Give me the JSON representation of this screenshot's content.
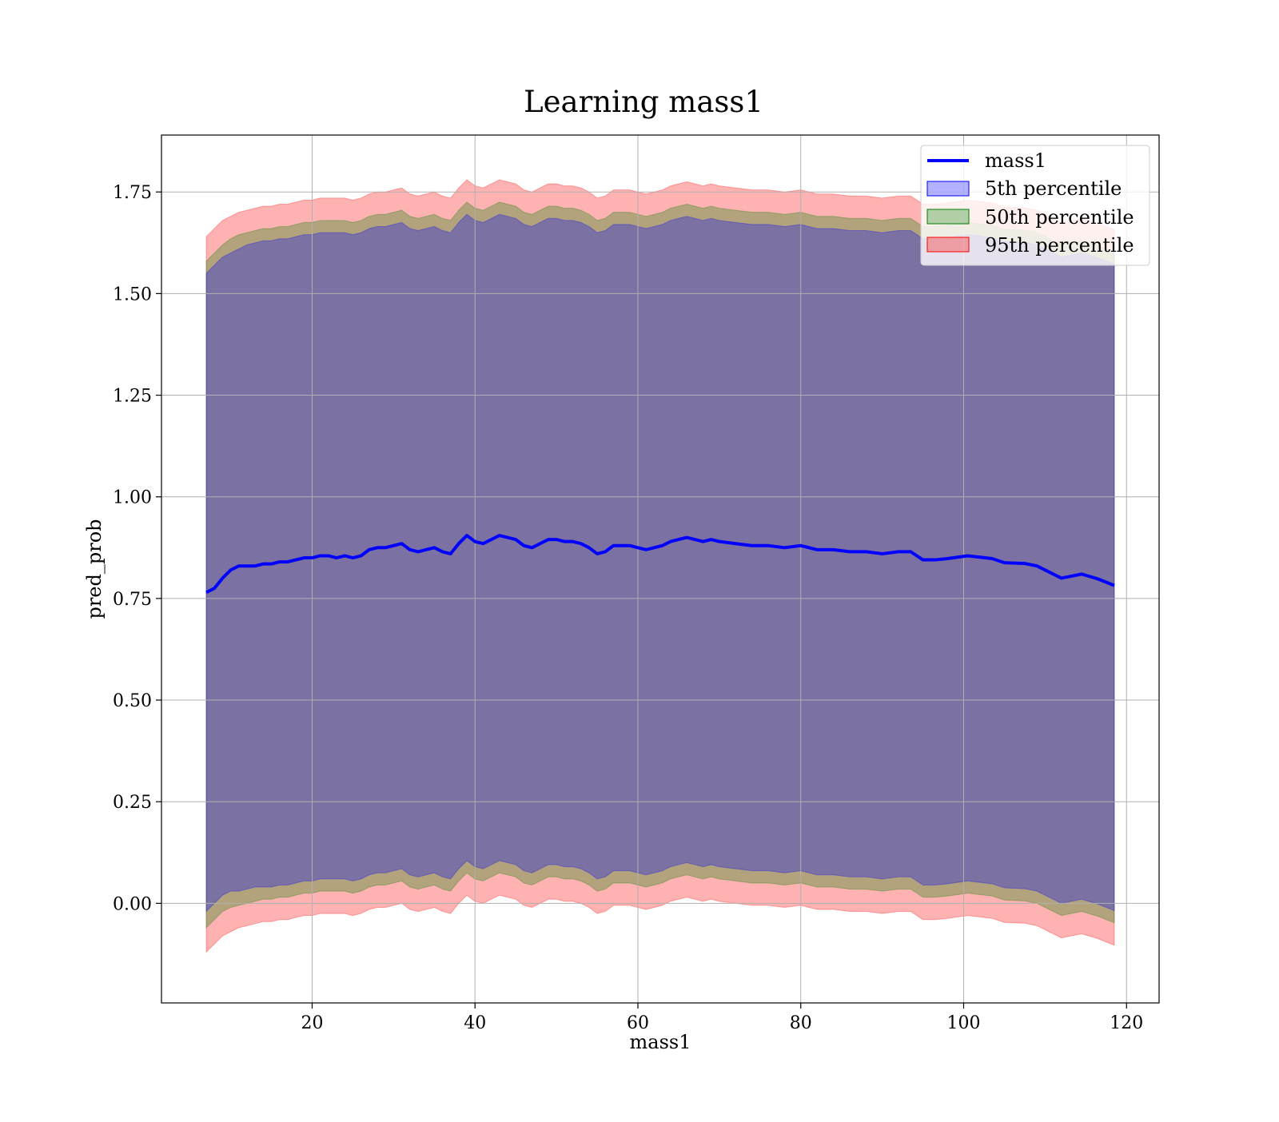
{
  "chart_data": {
    "type": "area",
    "title": "Learning mass1",
    "xlabel": "mass1",
    "ylabel": "pred_prob",
    "xlim": [
      1.5,
      124
    ],
    "ylim": [
      -0.245,
      1.89
    ],
    "xticks": [
      20,
      40,
      60,
      80,
      100,
      120
    ],
    "xtick_labels": [
      "20",
      "40",
      "60",
      "80",
      "100",
      "120"
    ],
    "yticks": [
      0.0,
      0.25,
      0.5,
      0.75,
      1.0,
      1.25,
      1.5,
      1.75
    ],
    "ytick_labels": [
      "0.00",
      "0.25",
      "0.50",
      "0.75",
      "1.00",
      "1.25",
      "1.50",
      "1.75"
    ],
    "grid": true,
    "legend_position": "top-right",
    "legend": [
      {
        "label": "mass1",
        "kind": "line",
        "color": "#0000ff"
      },
      {
        "label": "5th percentile",
        "kind": "patch",
        "color": "#0000ff"
      },
      {
        "label": "50th percentile",
        "kind": "patch",
        "color": "#008000"
      },
      {
        "label": "95th percentile",
        "kind": "patch",
        "color": "#ff0000"
      }
    ],
    "x": [
      7,
      8,
      9,
      10,
      11,
      12,
      13,
      14,
      15,
      16,
      17,
      18,
      19,
      20,
      21,
      22,
      23,
      24,
      25,
      26,
      27,
      28,
      29,
      30,
      31,
      32,
      33,
      34,
      35,
      36,
      37,
      38,
      39,
      40,
      41,
      42,
      43,
      44,
      45,
      46,
      47,
      48,
      49,
      50,
      51,
      52,
      53,
      54,
      55,
      56,
      57,
      58,
      59,
      60,
      61,
      62,
      63,
      64,
      65,
      66,
      67,
      68,
      69,
      70,
      72,
      74,
      76,
      78,
      80,
      82,
      84,
      86,
      88,
      90,
      92,
      93.5,
      95,
      96.5,
      98,
      100.5,
      103.5,
      105,
      107.5,
      109,
      112,
      114.5,
      116.5,
      118.5
    ],
    "series": [
      {
        "name": "mass1",
        "color": "#0000ff",
        "values": [
          0.765,
          0.775,
          0.8,
          0.82,
          0.83,
          0.83,
          0.83,
          0.835,
          0.835,
          0.84,
          0.84,
          0.845,
          0.85,
          0.85,
          0.855,
          0.855,
          0.85,
          0.855,
          0.85,
          0.855,
          0.87,
          0.875,
          0.875,
          0.88,
          0.885,
          0.87,
          0.865,
          0.87,
          0.875,
          0.865,
          0.86,
          0.885,
          0.905,
          0.89,
          0.885,
          0.895,
          0.905,
          0.9,
          0.895,
          0.88,
          0.875,
          0.885,
          0.895,
          0.895,
          0.89,
          0.89,
          0.885,
          0.875,
          0.86,
          0.865,
          0.88,
          0.88,
          0.88,
          0.875,
          0.87,
          0.875,
          0.88,
          0.89,
          0.895,
          0.9,
          0.895,
          0.89,
          0.895,
          0.89,
          0.885,
          0.88,
          0.88,
          0.875,
          0.88,
          0.87,
          0.87,
          0.865,
          0.865,
          0.86,
          0.865,
          0.865,
          0.845,
          0.845,
          0.848,
          0.855,
          0.848,
          0.838,
          0.836,
          0.83,
          0.8,
          0.81,
          0.798,
          0.782
        ]
      },
      {
        "name": "5th percentile",
        "color": "#0000ff",
        "lower": [
          -0.02,
          0.0,
          0.02,
          0.03,
          0.03,
          0.035,
          0.04,
          0.04,
          0.04,
          0.045,
          0.045,
          0.05,
          0.055,
          0.055,
          0.06,
          0.06,
          0.06,
          0.06,
          0.055,
          0.06,
          0.07,
          0.075,
          0.075,
          0.08,
          0.085,
          0.07,
          0.065,
          0.07,
          0.075,
          0.065,
          0.06,
          0.085,
          0.105,
          0.09,
          0.085,
          0.095,
          0.105,
          0.1,
          0.095,
          0.08,
          0.075,
          0.085,
          0.095,
          0.095,
          0.09,
          0.09,
          0.085,
          0.075,
          0.06,
          0.065,
          0.08,
          0.08,
          0.08,
          0.075,
          0.07,
          0.075,
          0.08,
          0.09,
          0.095,
          0.1,
          0.095,
          0.09,
          0.095,
          0.09,
          0.085,
          0.08,
          0.08,
          0.075,
          0.08,
          0.07,
          0.07,
          0.065,
          0.065,
          0.06,
          0.065,
          0.065,
          0.045,
          0.045,
          0.048,
          0.055,
          0.048,
          0.038,
          0.036,
          0.03,
          0.0,
          0.01,
          -0.002,
          -0.018
        ],
        "upper": [
          1.55,
          1.57,
          1.59,
          1.6,
          1.61,
          1.62,
          1.625,
          1.63,
          1.63,
          1.635,
          1.635,
          1.64,
          1.645,
          1.645,
          1.65,
          1.65,
          1.65,
          1.65,
          1.645,
          1.65,
          1.66,
          1.665,
          1.665,
          1.67,
          1.675,
          1.66,
          1.655,
          1.66,
          1.665,
          1.655,
          1.65,
          1.675,
          1.695,
          1.68,
          1.675,
          1.685,
          1.695,
          1.69,
          1.685,
          1.67,
          1.665,
          1.675,
          1.685,
          1.685,
          1.68,
          1.68,
          1.675,
          1.665,
          1.65,
          1.655,
          1.67,
          1.67,
          1.67,
          1.665,
          1.66,
          1.665,
          1.67,
          1.68,
          1.685,
          1.69,
          1.685,
          1.68,
          1.685,
          1.68,
          1.675,
          1.67,
          1.67,
          1.665,
          1.67,
          1.66,
          1.66,
          1.655,
          1.655,
          1.65,
          1.655,
          1.655,
          1.635,
          1.635,
          1.638,
          1.645,
          1.638,
          1.628,
          1.626,
          1.62,
          1.59,
          1.6,
          1.588,
          1.572
        ]
      },
      {
        "name": "50th percentile",
        "color": "#008000",
        "lower": [
          -0.06,
          -0.04,
          -0.02,
          -0.01,
          -0.005,
          0.0,
          0.005,
          0.01,
          0.01,
          0.015,
          0.015,
          0.02,
          0.025,
          0.025,
          0.03,
          0.03,
          0.03,
          0.03,
          0.025,
          0.03,
          0.04,
          0.045,
          0.045,
          0.05,
          0.055,
          0.04,
          0.035,
          0.04,
          0.045,
          0.035,
          0.03,
          0.055,
          0.075,
          0.06,
          0.055,
          0.065,
          0.075,
          0.07,
          0.065,
          0.05,
          0.045,
          0.055,
          0.065,
          0.065,
          0.06,
          0.06,
          0.055,
          0.045,
          0.03,
          0.035,
          0.05,
          0.05,
          0.05,
          0.045,
          0.04,
          0.045,
          0.05,
          0.06,
          0.065,
          0.07,
          0.065,
          0.06,
          0.065,
          0.06,
          0.055,
          0.05,
          0.05,
          0.045,
          0.05,
          0.04,
          0.04,
          0.035,
          0.035,
          0.03,
          0.035,
          0.035,
          0.015,
          0.015,
          0.018,
          0.025,
          0.018,
          0.008,
          0.006,
          0.0,
          -0.03,
          -0.02,
          -0.032,
          -0.048
        ],
        "upper": [
          1.58,
          1.6,
          1.62,
          1.635,
          1.645,
          1.65,
          1.655,
          1.66,
          1.66,
          1.665,
          1.665,
          1.67,
          1.675,
          1.675,
          1.68,
          1.68,
          1.68,
          1.68,
          1.675,
          1.68,
          1.69,
          1.695,
          1.695,
          1.7,
          1.705,
          1.69,
          1.685,
          1.69,
          1.695,
          1.685,
          1.68,
          1.705,
          1.725,
          1.71,
          1.705,
          1.715,
          1.725,
          1.72,
          1.715,
          1.7,
          1.695,
          1.705,
          1.715,
          1.715,
          1.71,
          1.71,
          1.705,
          1.695,
          1.68,
          1.685,
          1.7,
          1.7,
          1.7,
          1.695,
          1.69,
          1.695,
          1.7,
          1.71,
          1.715,
          1.72,
          1.715,
          1.71,
          1.715,
          1.71,
          1.705,
          1.7,
          1.7,
          1.695,
          1.7,
          1.69,
          1.69,
          1.685,
          1.685,
          1.68,
          1.685,
          1.685,
          1.665,
          1.665,
          1.668,
          1.675,
          1.668,
          1.658,
          1.656,
          1.65,
          1.62,
          1.63,
          1.618,
          1.602
        ]
      },
      {
        "name": "95th percentile",
        "color": "#ff0000",
        "lower": [
          -0.12,
          -0.1,
          -0.08,
          -0.07,
          -0.06,
          -0.055,
          -0.05,
          -0.045,
          -0.045,
          -0.04,
          -0.04,
          -0.035,
          -0.03,
          -0.03,
          -0.025,
          -0.025,
          -0.025,
          -0.025,
          -0.03,
          -0.025,
          -0.015,
          -0.01,
          -0.01,
          -0.005,
          0.0,
          -0.015,
          -0.02,
          -0.015,
          -0.01,
          -0.02,
          -0.025,
          0.0,
          0.02,
          0.005,
          0.0,
          0.01,
          0.02,
          0.015,
          0.01,
          -0.005,
          -0.01,
          0.0,
          0.01,
          0.01,
          0.005,
          0.005,
          0.0,
          -0.01,
          -0.025,
          -0.02,
          -0.005,
          -0.005,
          -0.005,
          -0.01,
          -0.015,
          -0.01,
          -0.005,
          0.005,
          0.01,
          0.015,
          0.01,
          0.005,
          0.01,
          0.005,
          0.0,
          -0.005,
          -0.005,
          -0.01,
          -0.005,
          -0.015,
          -0.015,
          -0.02,
          -0.02,
          -0.025,
          -0.02,
          -0.02,
          -0.04,
          -0.04,
          -0.037,
          -0.03,
          -0.037,
          -0.047,
          -0.049,
          -0.055,
          -0.085,
          -0.075,
          -0.087,
          -0.103
        ],
        "upper": [
          1.64,
          1.66,
          1.68,
          1.69,
          1.7,
          1.705,
          1.71,
          1.715,
          1.715,
          1.72,
          1.72,
          1.725,
          1.73,
          1.73,
          1.735,
          1.735,
          1.735,
          1.735,
          1.73,
          1.735,
          1.745,
          1.75,
          1.75,
          1.755,
          1.76,
          1.745,
          1.74,
          1.745,
          1.75,
          1.74,
          1.735,
          1.76,
          1.78,
          1.765,
          1.76,
          1.77,
          1.78,
          1.775,
          1.77,
          1.755,
          1.75,
          1.76,
          1.77,
          1.77,
          1.765,
          1.765,
          1.76,
          1.75,
          1.735,
          1.74,
          1.755,
          1.755,
          1.755,
          1.75,
          1.745,
          1.75,
          1.755,
          1.765,
          1.77,
          1.775,
          1.77,
          1.765,
          1.77,
          1.765,
          1.76,
          1.755,
          1.755,
          1.75,
          1.755,
          1.745,
          1.745,
          1.74,
          1.74,
          1.735,
          1.74,
          1.74,
          1.72,
          1.72,
          1.723,
          1.73,
          1.723,
          1.713,
          1.711,
          1.705,
          1.675,
          1.685,
          1.673,
          1.657
        ]
      }
    ]
  }
}
